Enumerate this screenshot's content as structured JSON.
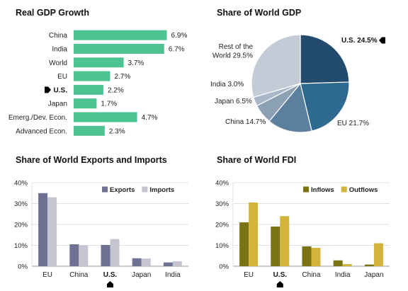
{
  "colors": {
    "growth_bar": "#4CC391",
    "pie": [
      "#234B6E",
      "#2E6A8F",
      "#5D7F9E",
      "#8CA0B4",
      "#A8B8C8",
      "#C3CBD6"
    ],
    "exports": "#6E7191",
    "imports": "#C5C5D2",
    "inflows": "#7A7313",
    "outflows": "#D2B43A",
    "grid": "#E0E0E0",
    "axis": "#999999"
  },
  "chart_data": [
    {
      "id": "gdp_growth",
      "type": "bar",
      "orientation": "horizontal",
      "title": "Real GDP Growth",
      "categories": [
        "China",
        "India",
        "World",
        "EU",
        "U.S.",
        "Japan",
        "Emerg./Dev. Econ.",
        "Advanced Econ."
      ],
      "values": [
        6.9,
        6.7,
        3.7,
        2.7,
        2.2,
        1.7,
        4.7,
        2.3
      ],
      "value_labels": [
        "6.9%",
        "6.7%",
        "3.7%",
        "2.7%",
        "2.2%",
        "1.7%",
        "4.7%",
        "2.3%"
      ],
      "highlight": "U.S.",
      "xlim": [
        0,
        7.5
      ],
      "grid": false
    },
    {
      "id": "world_gdp_share",
      "type": "pie",
      "title": "Share of World GDP",
      "slices": [
        {
          "label": "U.S. 24.5%",
          "value": 24.5
        },
        {
          "label": "EU 21.7%",
          "value": 21.7
        },
        {
          "label": "China 14.7%",
          "value": 14.7
        },
        {
          "label": "Japan 6.5%",
          "value": 6.5
        },
        {
          "label": "India 3.0%",
          "value": 3.0
        },
        {
          "label": "Rest of the World 29.5%",
          "value": 29.5
        }
      ],
      "highlight": "U.S."
    },
    {
      "id": "exports_imports",
      "type": "bar",
      "title": "Share of World Exports and Imports",
      "categories": [
        "EU",
        "China",
        "U.S.",
        "Japan",
        "India"
      ],
      "highlight": "U.S.",
      "series": [
        {
          "name": "Exports",
          "values": [
            35,
            10.5,
            10.2,
            3.8,
            1.8
          ]
        },
        {
          "name": "Imports",
          "values": [
            33,
            10,
            13,
            3.7,
            2.4
          ]
        }
      ],
      "ylim": [
        0,
        40
      ],
      "yticks": [
        "0%",
        "10%",
        "20%",
        "30%",
        "40%"
      ],
      "legend": "top-right",
      "grid": true
    },
    {
      "id": "fdi",
      "type": "bar",
      "title": "Share of World FDI",
      "categories": [
        "EU",
        "U.S.",
        "China",
        "India",
        "Japan"
      ],
      "highlight": "U.S.",
      "series": [
        {
          "name": "Inflows",
          "values": [
            21,
            19,
            9.5,
            2.8,
            0.8
          ]
        },
        {
          "name": "Outflows",
          "values": [
            30.5,
            24,
            8.8,
            1,
            11
          ]
        }
      ],
      "ylim": [
        0,
        40
      ],
      "yticks": [
        "0%",
        "10%",
        "20%",
        "30%",
        "40%"
      ],
      "legend": "top-right",
      "grid": true
    }
  ]
}
